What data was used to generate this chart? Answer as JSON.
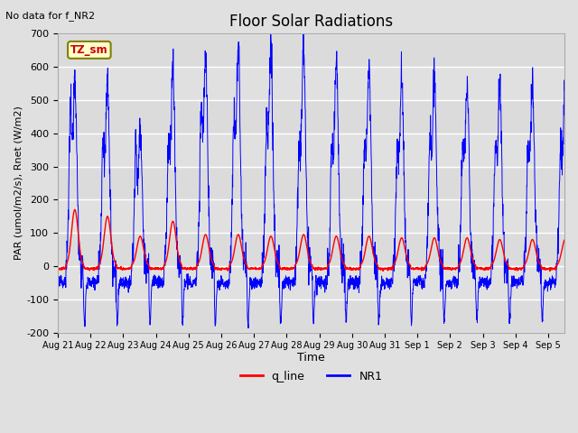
{
  "title": "Floor Solar Radiations",
  "ylabel": "PAR (umol/m2/s), Rnet (W/m2)",
  "xlabel": "Time",
  "top_left_text": "No data for f_NR2",
  "annotation_box": "TZ_sm",
  "ylim": [
    -200,
    700
  ],
  "yticks": [
    -200,
    -100,
    0,
    100,
    200,
    300,
    400,
    500,
    600,
    700
  ],
  "xtick_labels": [
    "Aug 21",
    "Aug 22",
    "Aug 23",
    "Aug 24",
    "Aug 25",
    "Aug 26",
    "Aug 27",
    "Aug 28",
    "Aug 29",
    "Aug 30",
    "Aug 31",
    "Sep 1",
    "Sep 2",
    "Sep 3",
    "Sep 4",
    "Sep 5"
  ],
  "background_color": "#e0e0e0",
  "plot_bg_color": "#e0e0e0",
  "nr1_color": "#0000ff",
  "q_line_color": "#ff0000",
  "legend_labels": [
    "q_line",
    "NR1"
  ],
  "peak_nr1": [
    580,
    560,
    410,
    600,
    640,
    660,
    650,
    660,
    630,
    600,
    570,
    590,
    565,
    545
  ],
  "peak_q": [
    170,
    150,
    90,
    135,
    95,
    95,
    90,
    95,
    90,
    90,
    85,
    85,
    85,
    80
  ],
  "secondary_nr1": [
    430,
    340,
    320,
    325,
    440,
    390,
    355,
    325,
    305,
    315,
    315,
    350,
    315,
    310
  ]
}
